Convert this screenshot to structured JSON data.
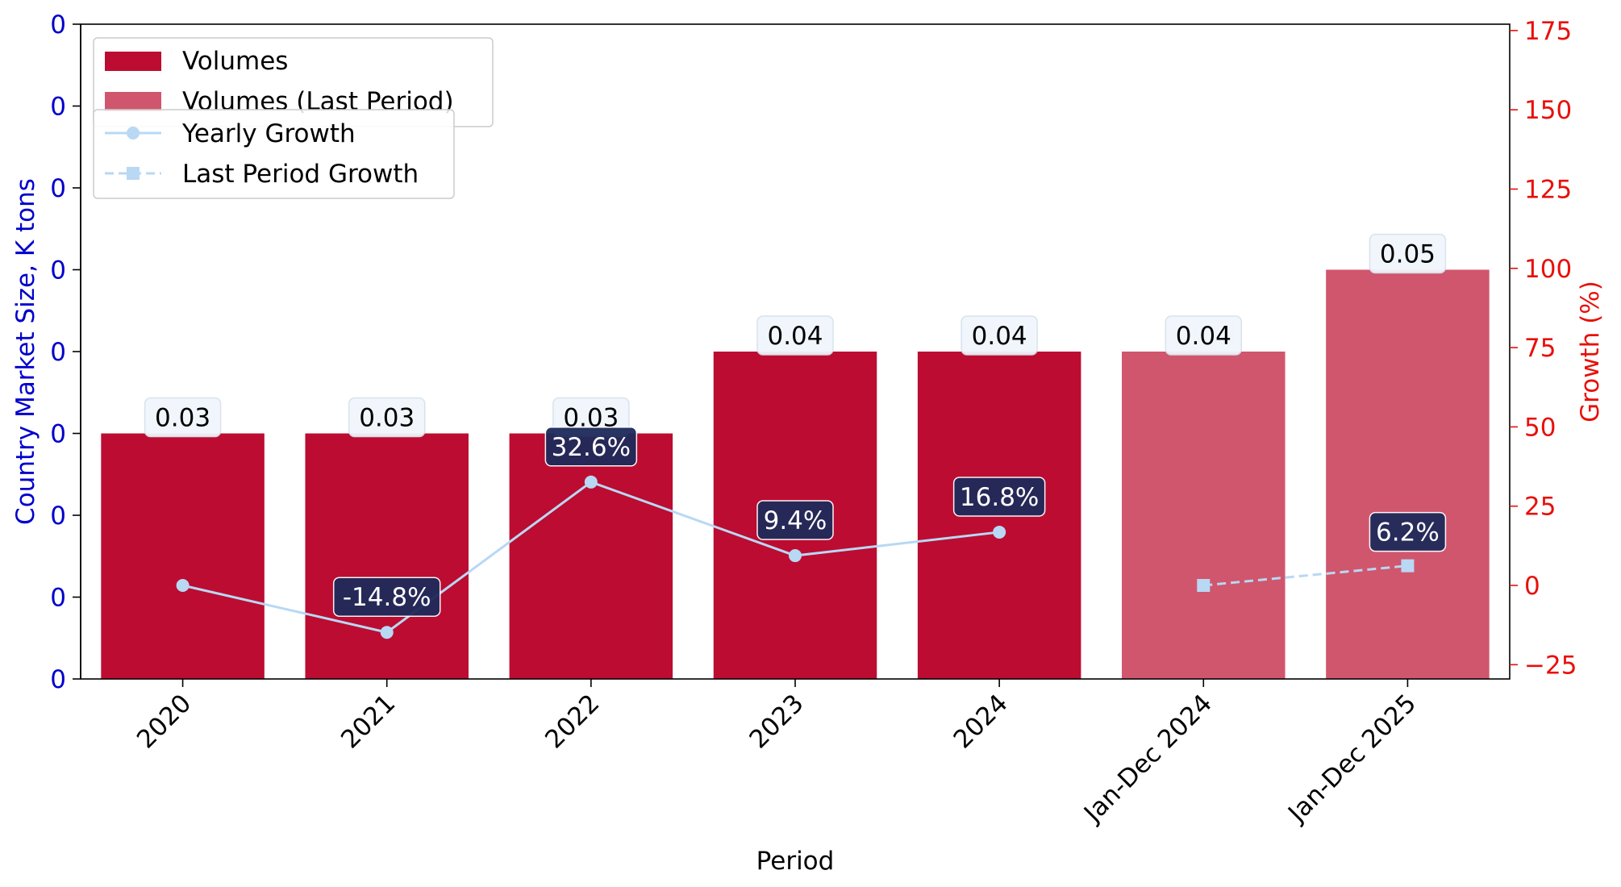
{
  "chart_data": {
    "type": "bar",
    "categories": [
      "2020",
      "2021",
      "2022",
      "2023",
      "2024",
      "Jan-Dec 2024",
      "Jan-Dec 2025"
    ],
    "series": [
      {
        "name": "Volumes",
        "kind": "bar",
        "color": "#BC0C31",
        "values": [
          0.03,
          0.03,
          0.03,
          0.04,
          0.04,
          null,
          null
        ],
        "labels": [
          "0.03",
          "0.03",
          "0.03",
          "0.04",
          "0.04",
          null,
          null
        ]
      },
      {
        "name": "Volumes (Last Period)",
        "kind": "bar",
        "color": "#D0566D",
        "values": [
          null,
          null,
          null,
          null,
          null,
          0.04,
          0.05
        ],
        "labels": [
          null,
          null,
          null,
          null,
          null,
          "0.04",
          "0.05"
        ]
      },
      {
        "name": "Yearly Growth",
        "kind": "line",
        "axis": "right",
        "color": "#B8D8F4",
        "marker": "circle",
        "linestyle": "solid",
        "values": [
          0,
          -14.8,
          32.6,
          9.4,
          16.8,
          null,
          null
        ],
        "labels": [
          null,
          "-14.8%",
          "32.6%",
          "9.4%",
          "16.8%",
          null,
          null
        ]
      },
      {
        "name": "Last Period Growth",
        "kind": "line",
        "axis": "right",
        "color": "#B8D8F4",
        "marker": "square",
        "linestyle": "dashed",
        "values": [
          null,
          null,
          null,
          null,
          null,
          0,
          6.2
        ],
        "labels": [
          null,
          null,
          null,
          null,
          null,
          null,
          "6.2%"
        ]
      }
    ],
    "xlabel": "Period",
    "ylabel_left": "Country Market Size, K tons",
    "ylabel_right": "Growth (%)",
    "y_left_lim": [
      0,
      0.08
    ],
    "y_left_ticks": [
      0,
      0.01,
      0.02,
      0.03,
      0.04,
      0.05,
      0.06,
      0.07,
      0.08
    ],
    "y_left_tick_labels": [
      "0",
      "0",
      "0",
      "0",
      "0",
      "0",
      "0",
      "0",
      "0"
    ],
    "y_right_lim": [
      -29.5,
      177
    ],
    "y_right_ticks": [
      -25,
      0,
      25,
      50,
      75,
      100,
      125,
      150,
      175
    ],
    "y_right_tick_labels": [
      "−25",
      "0",
      "25",
      "50",
      "75",
      "100",
      "125",
      "150",
      "175"
    ],
    "left_axis_color": "#0000CC",
    "right_axis_color": "#E8100B",
    "growth_label_bg": "#1E2A5A",
    "value_label_bg": "#F0F6FB",
    "grid": false,
    "legend_placement": "top-left"
  }
}
